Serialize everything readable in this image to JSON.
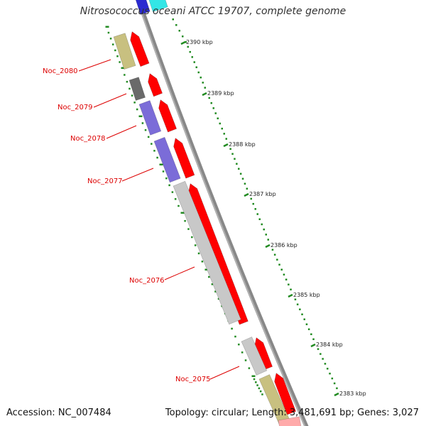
{
  "title": "Nitrosococcus oceani ATCC 19707, complete genome",
  "footer": {
    "accession": "Accession: NC_007484",
    "stats": "Topology: circular; Length: 3,481,691 bp; Genes: 3,027"
  },
  "colors": {
    "background": "#ffffff",
    "backbone": "#888888",
    "forward_cds": "#ff0000",
    "gene_label": "#dd0000",
    "tick": "#228b22",
    "tick_label": "#222222",
    "olive": "#c8c080",
    "dark_gray": "#6a6a6a",
    "purple": "#7b6cd8",
    "light_gray": "#c8c8c8",
    "blue": "#2a2ad0",
    "cyan": "#33e6e6",
    "pink": "#ffaaaa"
  },
  "ticks": [
    {
      "label": "2390 kbp"
    },
    {
      "label": "2389 kbp"
    },
    {
      "label": "2388 kbp"
    },
    {
      "label": "2387 kbp"
    },
    {
      "label": "2386 kbp"
    },
    {
      "label": "2385 kbp"
    },
    {
      "label": "2384 kbp"
    },
    {
      "label": "2383 kbp"
    }
  ],
  "genes": [
    {
      "label": "Noc_2080",
      "color": "olive"
    },
    {
      "label": "Noc_2079",
      "color": "dark_gray"
    },
    {
      "label": "Noc_2078",
      "color": "purple"
    },
    {
      "label": "Noc_2077",
      "color": "purple"
    },
    {
      "label": "Noc_2076",
      "color": "light_gray"
    },
    {
      "label": "Noc_2075",
      "color": "light_gray"
    }
  ],
  "extra_genes": [
    {
      "color": "blue"
    },
    {
      "color": "cyan"
    },
    {
      "color": "olive"
    },
    {
      "color": "pink"
    }
  ]
}
